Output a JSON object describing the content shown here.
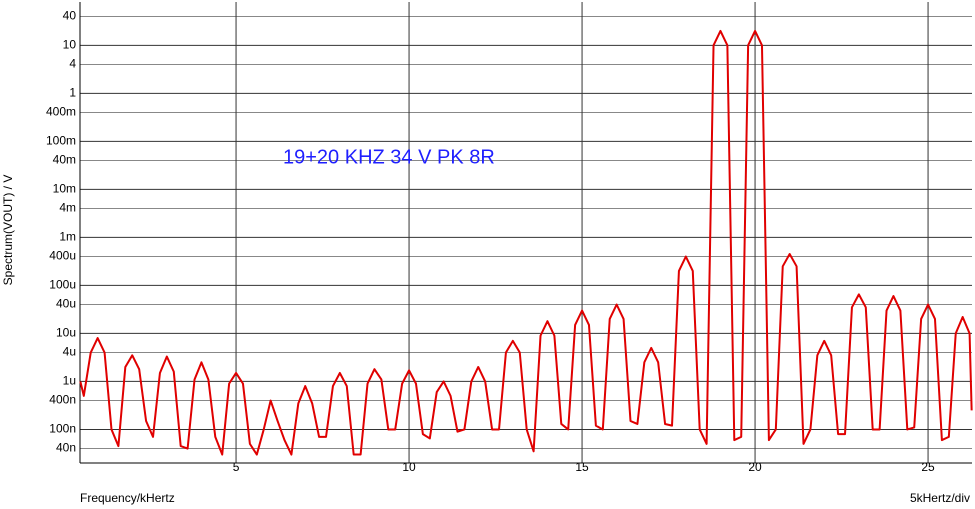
{
  "chart_data": {
    "type": "line",
    "xlabel": "Frequency/kHertz",
    "x_scale_label": "5kHertz/div",
    "ylabel": "Spectrum(VOUT) / V",
    "annotation": "19+20 KHZ  34 V PK 8R",
    "log_y": true,
    "grid": true,
    "xlim": [
      0.49,
      26.27
    ],
    "xticks": [
      5,
      10,
      15,
      20,
      25
    ],
    "ylim": [
      2e-08,
      80
    ],
    "yticks": [
      40,
      10,
      4,
      1,
      {
        "value": 0.4,
        "label": "400m"
      },
      {
        "value": 0.1,
        "label": "100m"
      },
      {
        "value": 0.04,
        "label": "40m"
      },
      {
        "value": 0.01,
        "label": "10m"
      },
      {
        "value": 0.004,
        "label": "4m"
      },
      {
        "value": 0.001,
        "label": "1m"
      },
      {
        "value": 0.0004,
        "label": "400u"
      },
      {
        "value": 0.0001,
        "label": "100u"
      },
      {
        "value": 4e-05,
        "label": "40u"
      },
      {
        "value": 1e-05,
        "label": "10u"
      },
      {
        "value": 4e-06,
        "label": "4u"
      },
      {
        "value": 1e-06,
        "label": "1u"
      },
      {
        "value": 4e-07,
        "label": "400n"
      },
      {
        "value": 1e-07,
        "label": "100n"
      },
      {
        "value": 4e-08,
        "label": "40n"
      }
    ],
    "x": [
      0.5,
      0.6,
      0.8,
      1.0,
      1.2,
      1.4,
      1.6,
      1.8,
      2.0,
      2.2,
      2.4,
      2.6,
      2.8,
      3.0,
      3.2,
      3.4,
      3.6,
      3.8,
      4.0,
      4.2,
      4.4,
      4.6,
      4.8,
      5.0,
      5.2,
      5.4,
      5.6,
      5.8,
      6.0,
      6.2,
      6.4,
      6.6,
      6.8,
      7.0,
      7.2,
      7.4,
      7.6,
      7.8,
      8.0,
      8.2,
      8.4,
      8.6,
      8.8,
      9.0,
      9.2,
      9.4,
      9.6,
      9.8,
      10.0,
      10.2,
      10.4,
      10.6,
      10.8,
      11.0,
      11.2,
      11.4,
      11.6,
      11.8,
      12.0,
      12.2,
      12.4,
      12.6,
      12.8,
      13.0,
      13.2,
      13.4,
      13.6,
      13.8,
      14.0,
      14.2,
      14.4,
      14.6,
      14.8,
      15.0,
      15.2,
      15.4,
      15.6,
      15.8,
      16.0,
      16.2,
      16.4,
      16.6,
      16.8,
      17.0,
      17.2,
      17.4,
      17.6,
      17.8,
      18.0,
      18.2,
      18.4,
      18.6,
      18.8,
      19.0,
      19.2,
      19.4,
      19.6,
      19.8,
      20.0,
      20.2,
      20.4,
      20.6,
      20.8,
      21.0,
      21.2,
      21.4,
      21.6,
      21.8,
      22.0,
      22.2,
      22.4,
      22.6,
      22.8,
      23.0,
      23.2,
      23.4,
      23.6,
      23.8,
      24.0,
      24.2,
      24.4,
      24.6,
      24.8,
      25.0,
      25.2,
      25.4,
      25.6,
      25.8,
      26.0,
      26.2,
      26.26
    ],
    "series": [
      {
        "color": "#e00000",
        "values": [
          1e-06,
          5e-07,
          4e-06,
          8e-06,
          4e-06,
          1e-07,
          4.5e-08,
          2e-06,
          3.5e-06,
          1.8e-06,
          1.5e-07,
          7e-08,
          1.5e-06,
          3.3e-06,
          1.6e-06,
          4.5e-08,
          4e-08,
          1.1e-06,
          2.5e-06,
          1.1e-06,
          7e-08,
          3e-08,
          9e-07,
          1.5e-06,
          9e-07,
          5e-08,
          3e-08,
          1e-07,
          4e-07,
          1.5e-07,
          6e-08,
          3e-08,
          3.5e-07,
          8e-07,
          3.5e-07,
          7e-08,
          7e-08,
          8e-07,
          1.5e-06,
          8e-07,
          3e-08,
          3e-08,
          9e-07,
          1.8e-06,
          1.1e-06,
          1e-07,
          1e-07,
          9e-07,
          1.7e-06,
          9e-07,
          8e-08,
          6.5e-08,
          6e-07,
          1e-06,
          5e-07,
          9e-08,
          1e-07,
          1e-06,
          2e-06,
          1e-06,
          1e-07,
          1e-07,
          4e-06,
          7e-06,
          4e-06,
          1e-07,
          3.5e-08,
          9e-06,
          1.8e-05,
          9e-06,
          1.3e-07,
          1e-07,
          1.5e-05,
          3e-05,
          1.5e-05,
          1.2e-07,
          1e-07,
          2e-05,
          4e-05,
          2e-05,
          1.5e-07,
          1.3e-07,
          2.5e-06,
          5e-06,
          2.5e-06,
          1.3e-07,
          1.2e-07,
          0.0002,
          0.0004,
          0.0002,
          1e-07,
          5e-08,
          10,
          20,
          10,
          6e-08,
          7e-08,
          10,
          20,
          10,
          6e-08,
          1e-07,
          0.00025,
          0.00045,
          0.00025,
          5e-08,
          1e-07,
          3.5e-06,
          7e-06,
          3.5e-06,
          8e-08,
          8e-08,
          3.5e-05,
          6.5e-05,
          3.5e-05,
          1e-07,
          1e-07,
          3e-05,
          6e-05,
          3e-05,
          1e-07,
          1.1e-07,
          2e-05,
          4e-05,
          2e-05,
          6e-08,
          7e-08,
          1e-05,
          2.2e-05,
          1e-05,
          2.5e-07
        ]
      }
    ]
  }
}
